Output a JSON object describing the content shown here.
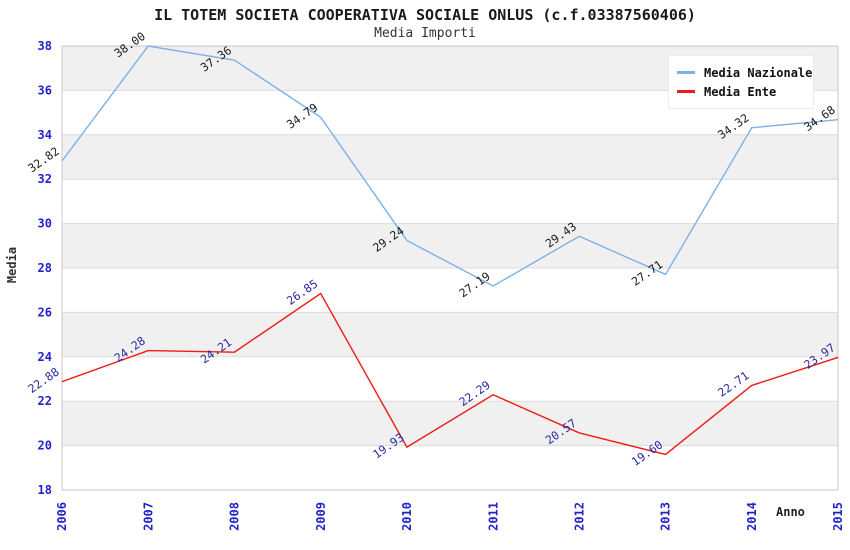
{
  "title": "IL TOTEM SOCIETA COOPERATIVA SOCIALE ONLUS (c.f.03387560406)",
  "subtitle": "Media Importi",
  "legend": {
    "items": [
      {
        "label": "Media Nazionale",
        "color": "#7db1e8"
      },
      {
        "label": "Media Ente",
        "color": "#ef1c14"
      }
    ]
  },
  "chart_data": {
    "type": "line",
    "x": [
      2006,
      2007,
      2008,
      2009,
      2010,
      2011,
      2012,
      2013,
      2014,
      2015
    ],
    "series": [
      {
        "name": "Media Nazionale",
        "color": "#7db1e8",
        "label_color": "#1a1a1a",
        "values": [
          32.82,
          38.0,
          37.36,
          34.79,
          29.24,
          27.19,
          29.43,
          27.71,
          34.32,
          34.68
        ]
      },
      {
        "name": "Media Ente",
        "color": "#ef1c14",
        "label_color": "#2929a3",
        "values": [
          22.88,
          24.28,
          24.21,
          26.85,
          19.93,
          22.29,
          20.57,
          19.6,
          22.71,
          23.97
        ]
      }
    ],
    "xlabel": "Anno",
    "ylabel": "Media",
    "ylim": [
      18,
      38
    ],
    "ytick_step": 2,
    "yticks": [
      18,
      20,
      22,
      24,
      26,
      28,
      30,
      32,
      34,
      36,
      38
    ],
    "grid": true,
    "alternating_bands": true,
    "legend_position": "top-right",
    "colors": {
      "band_gray": "#f0f0f0",
      "gridline": "#dcdcdc",
      "plot_border": "#c8c8c8",
      "tick_label": "#2323cc",
      "axis_title": "#333333"
    }
  }
}
